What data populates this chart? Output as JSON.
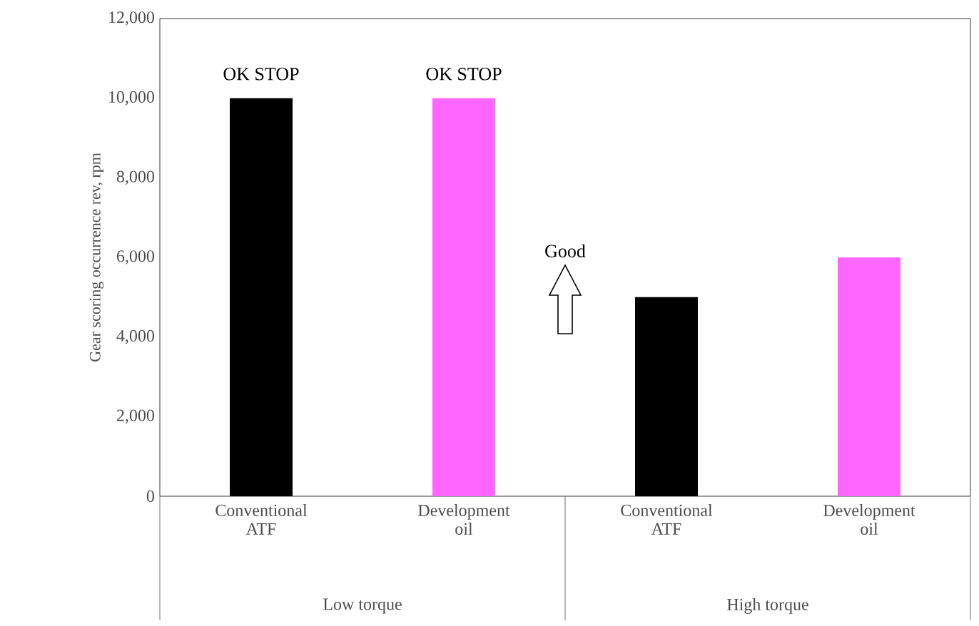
{
  "chart_data": {
    "type": "bar",
    "ylabel": "Gear scoring occurrence rev,  rpm",
    "categories": [
      "Conventional ATF",
      "Development oil",
      "Conventional ATF",
      "Development oil"
    ],
    "values": [
      10000,
      10000,
      5000,
      6000
    ],
    "colors": [
      "#000000",
      "#ff66ff",
      "#000000",
      "#ff66ff"
    ],
    "value_labels": [
      "OK STOP",
      "OK STOP",
      null,
      null
    ],
    "ylim": [
      0,
      12000
    ],
    "yticks": [
      0,
      {
        "value": 2000,
        "label": "2,000"
      },
      {
        "value": 4000,
        "label": "4,000"
      },
      {
        "value": 6000,
        "label": "6,000"
      },
      {
        "value": 8000,
        "label": "8,000"
      },
      {
        "value": 10000,
        "label": "10,000"
      },
      {
        "value": 12000,
        "label": "12,000"
      }
    ],
    "annotations": [
      "Good",
      "Low torque",
      "High torque"
    ]
  }
}
